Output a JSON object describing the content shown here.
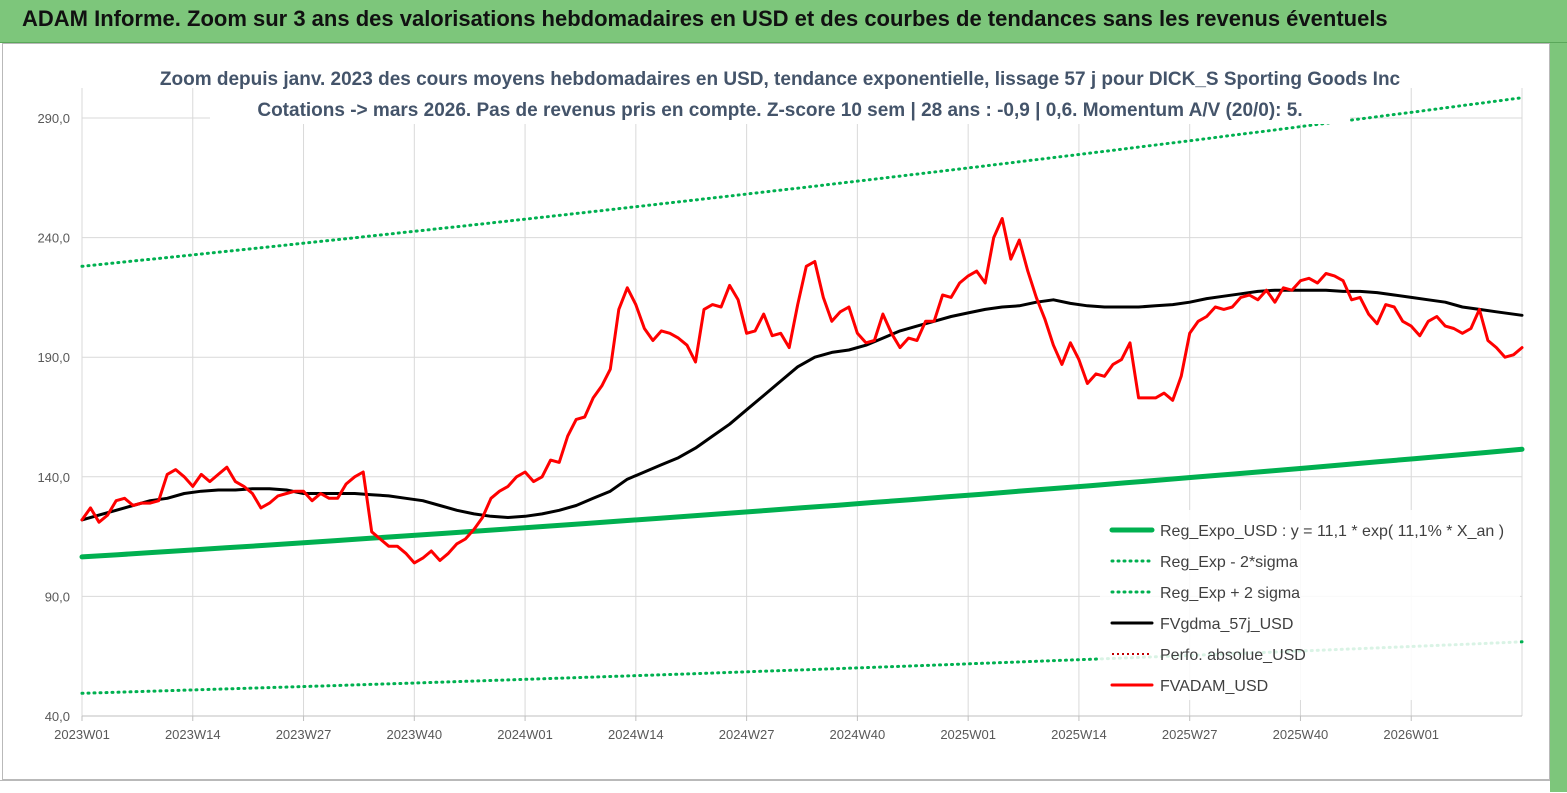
{
  "banner": {
    "title": "ADAM Informe. Zoom sur 3 ans des valorisations hebdomadaires en USD et des courbes de tendances sans les revenus éventuels"
  },
  "colors": {
    "banner": "#7dc67b",
    "trend": "#00b050",
    "price": "#ff0000",
    "average": "#000000",
    "perf": "#c00000"
  },
  "chart_data": {
    "type": "line",
    "title_line1": "Zoom depuis janv. 2023 des cours moyens hebdomadaires en USD, tendance exponentielle, lissage 57 j pour DICK_S Sporting Goods Inc",
    "title_line2": "Cotations -> mars 2026. Pas de revenus pris en compte. Z-score 10 sem | 28 ans : -0,9 | 0,6. Momentum A/V (20/0): 5.",
    "xlabel": "",
    "ylabel": "",
    "ylim": [
      40,
      290
    ],
    "yticks": [
      "40,0",
      "90,0",
      "140,0",
      "190,0",
      "240,0",
      "290,0"
    ],
    "ytick_values": [
      40,
      90,
      140,
      190,
      240,
      290
    ],
    "xtick_labels": [
      "2023W01",
      "2023W14",
      "2023W27",
      "2023W40",
      "2024W01",
      "2024W14",
      "2024W27",
      "2024W40",
      "2025W01",
      "2025W14",
      "2025W27",
      "2025W40",
      "2026W01"
    ],
    "xtick_weeks": [
      0,
      13,
      26,
      39,
      52,
      65,
      78,
      91,
      104,
      117,
      130,
      143,
      156
    ],
    "x_weeks_total": 169,
    "grid": true,
    "legend_position": "bottom-right",
    "series": [
      {
        "name": "Reg_Expo_USD : y = 11,1 * exp( 11,1% * X_an )",
        "style": "trend",
        "keypoints": [
          [
            0,
            106.5
          ],
          [
            169,
            151.5
          ]
        ]
      },
      {
        "name": "Reg_Exp - 2*sigma",
        "style": "dotted",
        "keypoints": [
          [
            0,
            49.5
          ],
          [
            169,
            71
          ]
        ]
      },
      {
        "name": "Reg_Exp + 2 sigma",
        "style": "dotted",
        "keypoints": [
          [
            0,
            228
          ],
          [
            169,
            298.5
          ]
        ]
      },
      {
        "name": "FVgdma_57j_USD",
        "style": "average",
        "keypoints": [
          [
            0,
            122
          ],
          [
            2,
            124
          ],
          [
            4,
            126
          ],
          [
            6,
            128
          ],
          [
            8,
            130
          ],
          [
            10,
            131
          ],
          [
            12,
            133
          ],
          [
            14,
            134
          ],
          [
            16,
            134.5
          ],
          [
            18,
            134.5
          ],
          [
            20,
            135
          ],
          [
            22,
            135
          ],
          [
            24,
            134.5
          ],
          [
            26,
            133
          ],
          [
            28,
            133
          ],
          [
            30,
            133
          ],
          [
            32,
            133
          ],
          [
            34,
            132.5
          ],
          [
            36,
            132
          ],
          [
            38,
            131
          ],
          [
            40,
            130
          ],
          [
            42,
            128
          ],
          [
            44,
            126
          ],
          [
            46,
            124.5
          ],
          [
            48,
            123.5
          ],
          [
            50,
            123
          ],
          [
            52,
            123.5
          ],
          [
            54,
            124.5
          ],
          [
            56,
            126
          ],
          [
            58,
            128
          ],
          [
            60,
            131
          ],
          [
            62,
            134
          ],
          [
            64,
            139
          ],
          [
            66,
            142
          ],
          [
            68,
            145
          ],
          [
            70,
            148
          ],
          [
            72,
            152
          ],
          [
            74,
            157
          ],
          [
            76,
            162
          ],
          [
            78,
            168
          ],
          [
            80,
            174
          ],
          [
            82,
            180
          ],
          [
            84,
            186
          ],
          [
            86,
            190
          ],
          [
            88,
            192
          ],
          [
            90,
            193
          ],
          [
            92,
            195
          ],
          [
            94,
            198
          ],
          [
            96,
            201
          ],
          [
            98,
            203
          ],
          [
            100,
            205
          ],
          [
            102,
            207
          ],
          [
            104,
            208.5
          ],
          [
            106,
            210
          ],
          [
            108,
            211
          ],
          [
            110,
            211.5
          ],
          [
            112,
            213
          ],
          [
            114,
            214
          ],
          [
            116,
            212.5
          ],
          [
            118,
            211.5
          ],
          [
            120,
            211
          ],
          [
            122,
            211
          ],
          [
            124,
            211
          ],
          [
            126,
            211.5
          ],
          [
            128,
            212
          ],
          [
            130,
            213
          ],
          [
            132,
            214.5
          ],
          [
            134,
            215.5
          ],
          [
            136,
            216.5
          ],
          [
            138,
            217.5
          ],
          [
            140,
            218
          ],
          [
            142,
            218
          ],
          [
            144,
            218
          ],
          [
            146,
            218
          ],
          [
            148,
            217.5
          ],
          [
            150,
            217.5
          ],
          [
            152,
            217
          ],
          [
            154,
            216
          ],
          [
            156,
            215
          ],
          [
            158,
            214
          ],
          [
            160,
            213
          ],
          [
            162,
            211
          ],
          [
            164,
            210
          ],
          [
            166,
            209
          ],
          [
            169,
            207.5
          ]
        ]
      },
      {
        "name": "Perfo. absolue_USD",
        "style": "perf",
        "keypoints": []
      },
      {
        "name": "FVADAM_USD",
        "style": "price",
        "keypoints": [
          [
            0,
            122
          ],
          [
            1,
            127
          ],
          [
            2,
            121
          ],
          [
            3,
            124
          ],
          [
            4,
            130
          ],
          [
            5,
            131
          ],
          [
            6,
            128
          ],
          [
            7,
            129
          ],
          [
            8,
            129
          ],
          [
            9,
            130
          ],
          [
            10,
            141
          ],
          [
            11,
            143
          ],
          [
            12,
            140
          ],
          [
            13,
            136
          ],
          [
            14,
            141
          ],
          [
            15,
            138
          ],
          [
            16,
            141
          ],
          [
            17,
            144
          ],
          [
            18,
            138
          ],
          [
            19,
            136
          ],
          [
            20,
            133
          ],
          [
            21,
            127
          ],
          [
            22,
            129
          ],
          [
            23,
            132
          ],
          [
            24,
            133
          ],
          [
            25,
            134
          ],
          [
            26,
            134
          ],
          [
            27,
            130
          ],
          [
            28,
            133
          ],
          [
            29,
            131
          ],
          [
            30,
            131
          ],
          [
            31,
            137
          ],
          [
            32,
            140
          ],
          [
            33,
            142
          ],
          [
            34,
            117
          ],
          [
            35,
            114
          ],
          [
            36,
            111
          ],
          [
            37,
            111
          ],
          [
            38,
            108
          ],
          [
            39,
            104
          ],
          [
            40,
            106
          ],
          [
            41,
            109
          ],
          [
            42,
            105
          ],
          [
            43,
            108
          ],
          [
            44,
            112
          ],
          [
            45,
            114
          ],
          [
            46,
            118
          ],
          [
            47,
            123
          ],
          [
            48,
            131
          ],
          [
            49,
            134
          ],
          [
            50,
            136
          ],
          [
            51,
            140
          ],
          [
            52,
            142
          ],
          [
            53,
            138
          ],
          [
            54,
            140
          ],
          [
            55,
            147
          ],
          [
            56,
            146
          ],
          [
            57,
            157
          ],
          [
            58,
            164
          ],
          [
            59,
            165
          ],
          [
            60,
            173
          ],
          [
            61,
            178
          ],
          [
            62,
            185
          ],
          [
            63,
            210
          ],
          [
            64,
            219
          ],
          [
            65,
            212
          ],
          [
            66,
            202
          ],
          [
            67,
            197
          ],
          [
            68,
            201
          ],
          [
            69,
            200
          ],
          [
            70,
            198
          ],
          [
            71,
            195
          ],
          [
            72,
            188
          ],
          [
            73,
            210
          ],
          [
            74,
            212
          ],
          [
            75,
            211
          ],
          [
            76,
            220
          ],
          [
            77,
            214
          ],
          [
            78,
            200
          ],
          [
            79,
            201
          ],
          [
            80,
            208
          ],
          [
            81,
            199
          ],
          [
            82,
            200
          ],
          [
            83,
            194
          ],
          [
            84,
            212
          ],
          [
            85,
            228
          ],
          [
            86,
            230
          ],
          [
            87,
            215
          ],
          [
            88,
            205
          ],
          [
            89,
            209
          ],
          [
            90,
            211
          ],
          [
            91,
            200
          ],
          [
            92,
            196
          ],
          [
            93,
            197
          ],
          [
            94,
            208
          ],
          [
            95,
            200
          ],
          [
            96,
            194
          ],
          [
            97,
            198
          ],
          [
            98,
            197
          ],
          [
            99,
            205
          ],
          [
            100,
            205
          ],
          [
            101,
            216
          ],
          [
            102,
            215
          ],
          [
            103,
            221
          ],
          [
            104,
            224
          ],
          [
            105,
            226
          ],
          [
            106,
            221
          ],
          [
            107,
            240
          ],
          [
            108,
            248
          ],
          [
            109,
            231
          ],
          [
            110,
            239
          ],
          [
            111,
            226
          ],
          [
            112,
            215
          ],
          [
            113,
            206
          ],
          [
            114,
            195
          ],
          [
            115,
            187
          ],
          [
            116,
            196
          ],
          [
            117,
            189
          ],
          [
            118,
            179
          ],
          [
            119,
            183
          ],
          [
            120,
            182
          ],
          [
            121,
            187
          ],
          [
            122,
            189
          ],
          [
            123,
            196
          ],
          [
            124,
            173
          ],
          [
            125,
            173
          ],
          [
            126,
            173
          ],
          [
            127,
            175
          ],
          [
            128,
            172
          ],
          [
            129,
            182
          ],
          [
            130,
            200
          ],
          [
            131,
            205
          ],
          [
            132,
            207
          ],
          [
            133,
            211
          ],
          [
            134,
            210
          ],
          [
            135,
            211
          ],
          [
            136,
            215
          ],
          [
            137,
            216
          ],
          [
            138,
            214
          ],
          [
            139,
            218
          ],
          [
            140,
            213
          ],
          [
            141,
            219
          ],
          [
            142,
            218
          ],
          [
            143,
            222
          ],
          [
            144,
            223
          ],
          [
            145,
            221
          ],
          [
            146,
            225
          ],
          [
            147,
            224
          ],
          [
            148,
            222
          ],
          [
            149,
            214
          ],
          [
            150,
            215
          ],
          [
            151,
            208
          ],
          [
            152,
            204
          ],
          [
            153,
            212
          ],
          [
            154,
            211
          ],
          [
            155,
            205
          ],
          [
            156,
            203
          ],
          [
            157,
            199
          ],
          [
            158,
            205
          ],
          [
            159,
            207
          ],
          [
            160,
            203
          ],
          [
            161,
            202
          ],
          [
            162,
            200
          ],
          [
            163,
            202
          ],
          [
            164,
            210
          ],
          [
            165,
            197
          ],
          [
            166,
            194
          ],
          [
            167,
            190
          ],
          [
            168,
            191
          ],
          [
            169,
            194
          ]
        ]
      }
    ]
  }
}
